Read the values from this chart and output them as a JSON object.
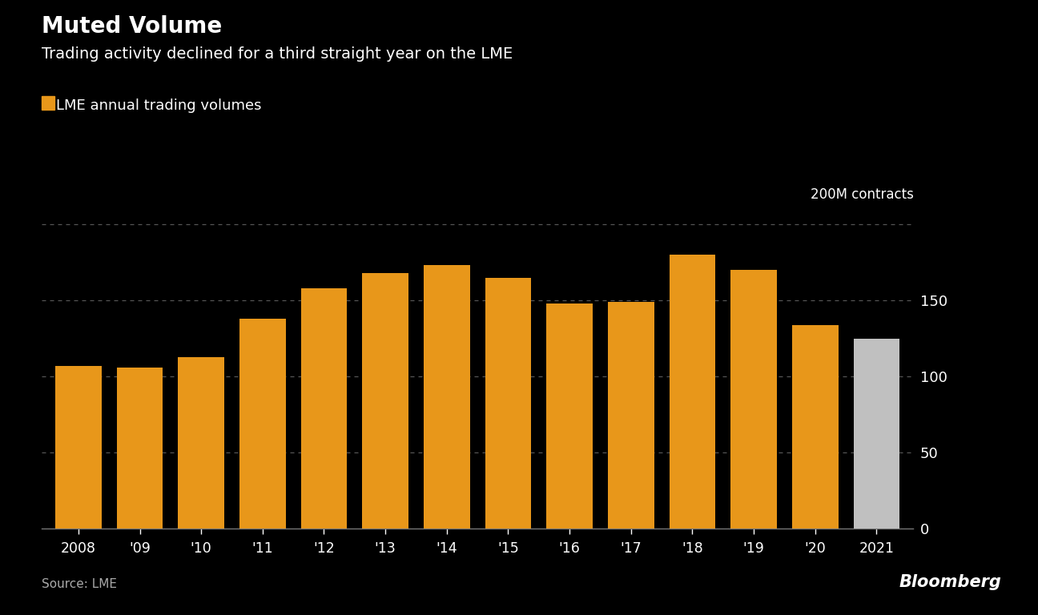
{
  "title_bold": "Muted Volume",
  "title_sub": "Trading activity declined for a third straight year on the LME",
  "legend_label": "LME annual trading volumes",
  "y_label": "200M contracts",
  "source": "Source: LME",
  "bloomberg": "Bloomberg",
  "years": [
    "2008",
    "'09",
    "'10",
    "'11",
    "'12",
    "'13",
    "'14",
    "'15",
    "'16",
    "'17",
    "'18",
    "'19",
    "'20",
    "2021"
  ],
  "values": [
    107,
    106,
    113,
    138,
    158,
    168,
    173,
    165,
    148,
    149,
    180,
    170,
    134,
    125
  ],
  "bar_colors": [
    "#E8971A",
    "#E8971A",
    "#E8971A",
    "#E8971A",
    "#E8971A",
    "#E8971A",
    "#E8971A",
    "#E8971A",
    "#E8971A",
    "#E8971A",
    "#E8971A",
    "#E8971A",
    "#E8971A",
    "#C0C0C0"
  ],
  "background_color": "#000000",
  "text_color": "#FFFFFF",
  "source_color": "#AAAAAA",
  "grid_color": "#555555",
  "ylim": [
    0,
    210
  ],
  "yticks": [
    0,
    50,
    100,
    150
  ],
  "gridlines_at": [
    50,
    100,
    150,
    200
  ],
  "legend_color": "#E8971A",
  "axis_line_color": "#777777"
}
